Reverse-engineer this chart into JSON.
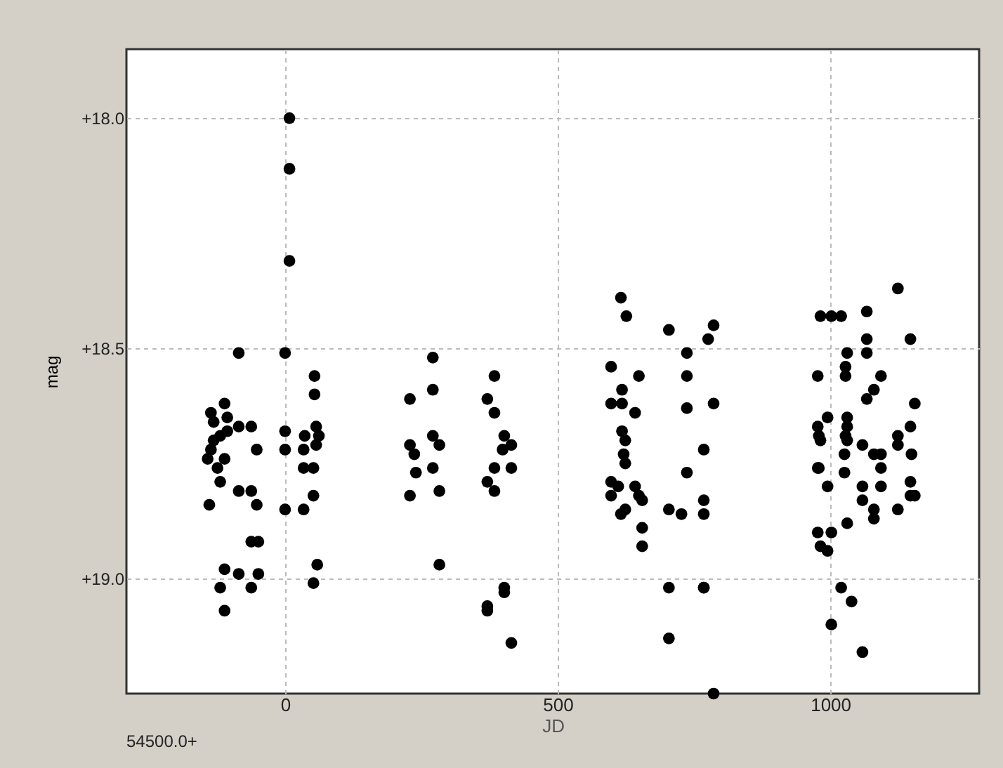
{
  "chart_data": {
    "type": "scatter",
    "xlabel": "JD",
    "ylabel": "mag",
    "annotations": [
      "54500.0+"
    ],
    "xlim": [
      -291,
      1273
    ],
    "xticks": [
      0,
      500,
      1000
    ],
    "ylim": [
      19.25,
      17.85
    ],
    "yticks": [
      {
        "value": 18,
        "label": "+18.0"
      },
      {
        "value": 18.5,
        "label": "+18.5"
      },
      {
        "value": 19,
        "label": "+19.0"
      }
    ],
    "grid": true,
    "marker": "circle",
    "series": [
      {
        "color": "#000000",
        "x": [
          -85,
          0,
          54,
          54,
          -111,
          -136,
          -106,
          -85,
          -62,
          -131,
          -119,
          -106,
          0,
          36,
          57,
          62,
          57,
          -131,
          -136,
          -52,
          0,
          34,
          -142,
          -111,
          52,
          34,
          -124,
          -119,
          -85,
          -62,
          52,
          -139,
          -52,
          0,
          34,
          -62,
          -49,
          -111,
          -85,
          -49,
          59,
          52,
          -119,
          -62,
          -111,
          8,
          8,
          8,
          271,
          229,
          271,
          384,
          371,
          384,
          271,
          229,
          283,
          237,
          240,
          271,
          283,
          229,
          402,
          399,
          415,
          384,
          415,
          371,
          384,
          283,
          402,
          402,
          371,
          371,
          415,
          616,
          626,
          704,
          786,
          776,
          737,
          737,
          598,
          649,
          618,
          598,
          618,
          642,
          737,
          786,
          618,
          624,
          621,
          624,
          768,
          737,
          598,
          598,
          611,
          642,
          649,
          655,
          616,
          624,
          704,
          727,
          768,
          768,
          655,
          655,
          768,
          704,
          768,
          704,
          786,
          1124,
          982,
          1002,
          1020,
          1067,
          1067,
          1147,
          1031,
          1067,
          1028,
          1028,
          977,
          1093,
          1080,
          1067,
          1155,
          995,
          1031,
          977,
          979,
          982,
          1031,
          1028,
          1031,
          1059,
          1124,
          1124,
          1147,
          1026,
          1080,
          1093,
          1093,
          1149,
          979,
          977,
          1026,
          995,
          1059,
          1093,
          1147,
          1059,
          1080,
          1080,
          1124,
          1147,
          1155,
          1031,
          977,
          1002,
          982,
          995,
          1020,
          1039,
          1002,
          1059
        ],
        "values": [
          18.51,
          18.51,
          18.56,
          18.6,
          18.62,
          18.64,
          18.65,
          18.67,
          18.67,
          18.66,
          18.69,
          18.68,
          18.68,
          18.69,
          18.67,
          18.69,
          18.71,
          18.7,
          18.72,
          18.72,
          18.72,
          18.72,
          18.74,
          18.74,
          18.76,
          18.76,
          18.76,
          18.79,
          18.81,
          18.81,
          18.82,
          18.84,
          18.84,
          18.85,
          18.85,
          18.92,
          18.92,
          18.98,
          18.99,
          18.99,
          18.97,
          19.01,
          19.02,
          19.02,
          19.07,
          18.0,
          18.11,
          18.31,
          18.52,
          18.61,
          18.59,
          18.56,
          18.61,
          18.64,
          18.69,
          18.71,
          18.71,
          18.73,
          18.77,
          18.76,
          18.81,
          18.82,
          18.69,
          18.72,
          18.71,
          18.76,
          18.76,
          18.79,
          18.81,
          18.97,
          19.02,
          19.03,
          19.06,
          19.07,
          19.14,
          18.39,
          18.43,
          18.46,
          18.45,
          18.48,
          18.51,
          18.56,
          18.54,
          18.56,
          18.59,
          18.62,
          18.62,
          18.64,
          18.63,
          18.62,
          18.68,
          18.7,
          18.73,
          18.75,
          18.72,
          18.77,
          18.79,
          18.82,
          18.8,
          18.8,
          18.82,
          18.83,
          18.86,
          18.85,
          18.85,
          18.86,
          18.83,
          18.86,
          18.89,
          18.93,
          19.02,
          19.02,
          19.02,
          19.13,
          19.25,
          18.37,
          18.43,
          18.43,
          18.43,
          18.42,
          18.48,
          18.48,
          18.51,
          18.51,
          18.54,
          18.56,
          18.56,
          18.56,
          18.59,
          18.61,
          18.62,
          18.65,
          18.65,
          18.67,
          18.69,
          18.7,
          18.67,
          18.69,
          18.7,
          18.71,
          18.69,
          18.71,
          18.67,
          18.73,
          18.73,
          18.73,
          18.76,
          18.73,
          18.76,
          18.76,
          18.77,
          18.8,
          18.8,
          18.8,
          18.79,
          18.83,
          18.85,
          18.87,
          18.85,
          18.82,
          18.82,
          18.88,
          18.9,
          18.9,
          18.93,
          18.94,
          19.02,
          19.05,
          19.1,
          19.16
        ]
      }
    ]
  }
}
